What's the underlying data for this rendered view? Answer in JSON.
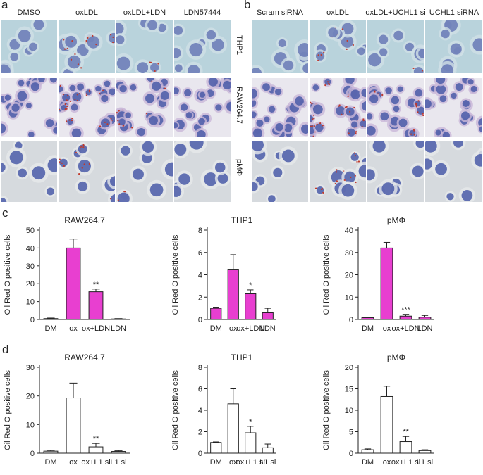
{
  "panels": {
    "a": {
      "letter": "a",
      "columns": [
        "DMSO",
        "oxLDL",
        "oxLDL+LDN",
        "LDN57444"
      ]
    },
    "b": {
      "letter": "b",
      "columns": [
        "Scram siRNA",
        "oxLDL",
        "oxLDL+UCHL1 si",
        "UCHL1 siRNA"
      ]
    },
    "c": {
      "letter": "c"
    },
    "d": {
      "letter": "d"
    }
  },
  "rows": [
    "THP1",
    "RAW264.7",
    "pMΦ"
  ],
  "colors": {
    "bar_fill_c": "#e83fd0",
    "bar_fill_d": "#ffffff",
    "stroke": "#222222",
    "thp1_bg": "#b9d3dc",
    "raw_bg": "#e9e7ee",
    "pm_bg": "#d6dade",
    "nucleus": "#4a5aa8",
    "lipid": "#c0392b"
  },
  "chart_data": [
    {
      "type": "bar",
      "title": "RAW264.7",
      "ylabel": "Oil Red O positive cells",
      "categories": [
        "DM",
        "ox",
        "ox+LDN",
        "LDN"
      ],
      "values": [
        0.5,
        40,
        15.5,
        0.3
      ],
      "errors": [
        0.3,
        5,
        1.5,
        0.2
      ],
      "ylim": [
        0,
        50
      ],
      "yticks": [
        "0",
        "10",
        "20",
        "30",
        "40",
        "50"
      ],
      "significance": [
        "",
        "",
        "**",
        ""
      ],
      "fill": "#e83fd0"
    },
    {
      "type": "bar",
      "title": "THP1",
      "ylabel": "Oil Red O positive cells",
      "categories": [
        "DM",
        "ox",
        "ox+LDN",
        "LDN"
      ],
      "values": [
        1,
        4.5,
        2.3,
        0.6
      ],
      "errors": [
        0.1,
        1.3,
        0.35,
        0.4
      ],
      "ylim": [
        0,
        8
      ],
      "yticks": [
        "0",
        "2",
        "4",
        "6",
        "8"
      ],
      "significance": [
        "",
        "",
        "*",
        ""
      ],
      "fill": "#e83fd0"
    },
    {
      "type": "bar",
      "title": "pMΦ",
      "ylabel": "Oil Red O positive cells",
      "categories": [
        "DM",
        "ox",
        "ox+LDN",
        "LDN"
      ],
      "values": [
        0.8,
        32,
        1.5,
        1
      ],
      "errors": [
        0.3,
        2.5,
        0.8,
        0.8
      ],
      "ylim": [
        0,
        40
      ],
      "yticks": [
        "0",
        "10",
        "20",
        "30",
        "40"
      ],
      "significance": [
        "",
        "",
        "***",
        ""
      ],
      "fill": "#e83fd0"
    },
    {
      "type": "bar",
      "title": "RAW264.7",
      "ylabel": "Oil Red O positive cells",
      "categories": [
        "DM",
        "ox",
        "ox+L1 si",
        "L1 si"
      ],
      "values": [
        0.7,
        19.3,
        2.2,
        0.6
      ],
      "errors": [
        0.3,
        5.2,
        1.2,
        0.3
      ],
      "ylim": [
        0,
        30
      ],
      "yticks": [
        "0",
        "10",
        "20",
        "30"
      ],
      "significance": [
        "",
        "",
        "**",
        ""
      ],
      "fill": "#ffffff"
    },
    {
      "type": "bar",
      "title": "THP1",
      "ylabel": "Oil Red O positive cells",
      "categories": [
        "DM",
        "ox",
        "ox+L1 si",
        "L1 si"
      ],
      "values": [
        1,
        4.6,
        1.9,
        0.5
      ],
      "errors": [
        0.05,
        1.4,
        0.6,
        0.35
      ],
      "ylim": [
        0,
        8
      ],
      "yticks": [
        "0",
        "2",
        "4",
        "6",
        "8"
      ],
      "significance": [
        "",
        "",
        "*",
        ""
      ],
      "fill": "#ffffff"
    },
    {
      "type": "bar",
      "title": "pMΦ",
      "ylabel": "Oil Red O positive cells",
      "categories": [
        "DM",
        "ox",
        "ox+L1 si",
        "L1 si"
      ],
      "values": [
        0.8,
        13.2,
        2.7,
        0.6
      ],
      "errors": [
        0.2,
        2.4,
        1.2,
        0.2
      ],
      "ylim": [
        0,
        20
      ],
      "yticks": [
        "0",
        "5",
        "10",
        "15",
        "20"
      ],
      "significance": [
        "",
        "",
        "**",
        ""
      ],
      "fill": "#ffffff"
    }
  ]
}
